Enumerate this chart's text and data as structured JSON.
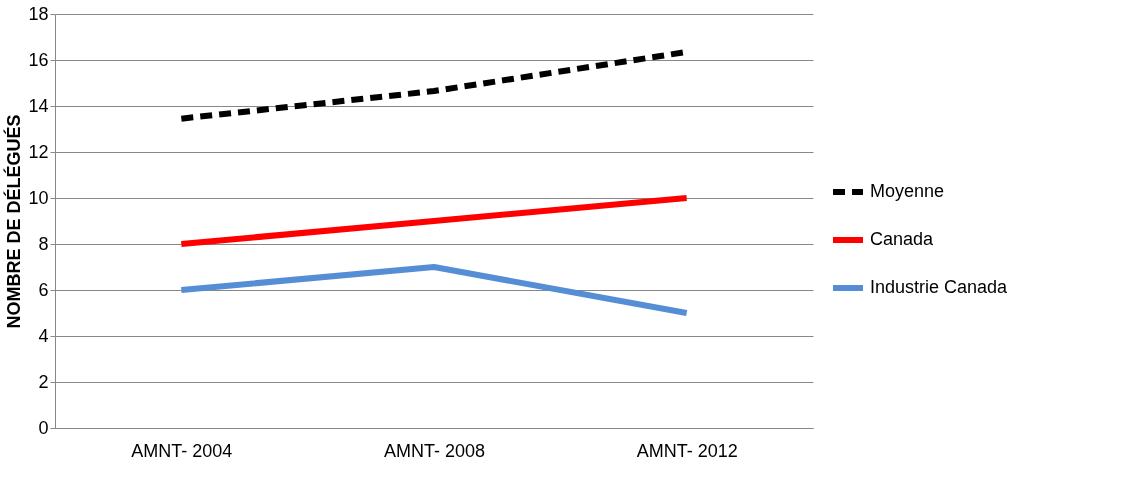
{
  "chart_data": {
    "type": "line",
    "ylabel": "NOMBRE DE DÉLÉGUÉS",
    "categories": [
      "AMNT- 2004",
      "AMNT- 2008",
      "AMNT- 2012"
    ],
    "series": [
      {
        "name": "Moyenne",
        "color": "#000000",
        "values": [
          13.45,
          14.65,
          16.35
        ],
        "line_style": "dashed"
      },
      {
        "name": "Canada",
        "color": "#ff0000",
        "values": [
          8,
          9,
          10
        ],
        "line_style": "solid"
      },
      {
        "name": "Industrie Canada",
        "color": "#558ed5",
        "values": [
          6,
          7,
          5
        ],
        "line_style": "solid"
      }
    ],
    "ylim": [
      0,
      18
    ],
    "yticks": [
      0,
      2,
      4,
      6,
      8,
      10,
      12,
      14,
      16,
      18
    ],
    "grid": "y",
    "legend": "right",
    "marker": "none"
  }
}
